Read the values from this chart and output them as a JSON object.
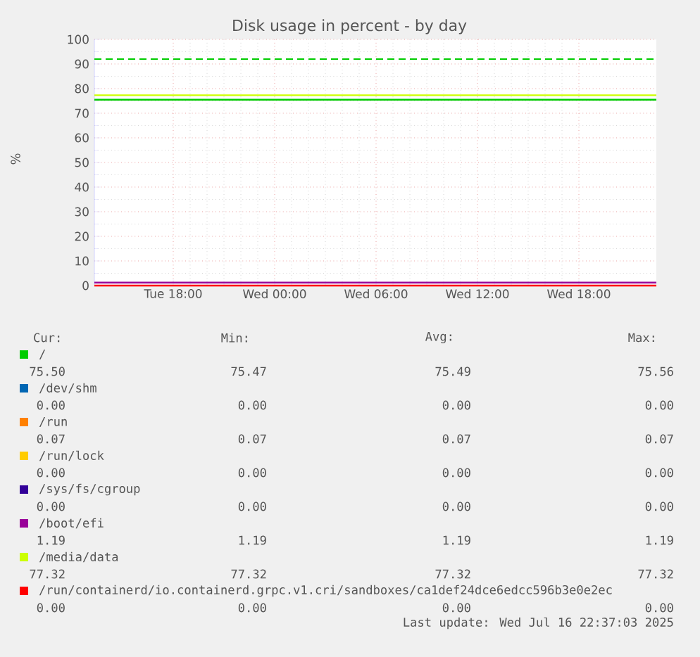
{
  "chart_data": {
    "type": "line",
    "title": "Disk usage in percent - by day",
    "ylabel": "%",
    "xlim": [
      "2025-07-15T13:20",
      "2025-07-16T22:35"
    ],
    "ylim": [
      0,
      100
    ],
    "xticks": [
      {
        "value": "2025-07-15T18:00",
        "label": "Tue 18:00"
      },
      {
        "value": "2025-07-16T00:00",
        "label": "Wed 00:00"
      },
      {
        "value": "2025-07-16T06:00",
        "label": "Wed 06:00"
      },
      {
        "value": "2025-07-16T12:00",
        "label": "Wed 12:00"
      },
      {
        "value": "2025-07-16T18:00",
        "label": "Wed 18:00"
      }
    ],
    "yticks": [
      0,
      10,
      20,
      30,
      40,
      50,
      60,
      70,
      80,
      90,
      100
    ],
    "x": [
      "2025-07-15T13:20",
      "2025-07-16T22:35"
    ],
    "series": [
      {
        "name": "/",
        "color": "#00cc00",
        "values": [
          75.5,
          75.5
        ]
      },
      {
        "name": "/dev/shm",
        "color": "#0066b3",
        "values": [
          null,
          null
        ]
      },
      {
        "name": "/run",
        "color": "#ff8000",
        "values": [
          null,
          null
        ]
      },
      {
        "name": "/run/lock",
        "color": "#ffcc00",
        "values": [
          null,
          null
        ]
      },
      {
        "name": "/sys/fs/cgroup",
        "color": "#330099",
        "values": [
          null,
          null
        ]
      },
      {
        "name": "/boot/efi",
        "color": "#990099",
        "values": [
          1.19,
          1.19
        ]
      },
      {
        "name": "/media/data",
        "color": "#ccff00",
        "values": [
          77.32,
          77.32
        ]
      },
      {
        "name": "/run/containerd/io.containerd.grpc.v1.cri/sandboxes/ca1def24dce6edcc596b3e0e2ec",
        "color": "#ff0000",
        "values": [
          0,
          0
        ]
      }
    ],
    "ref_lines": [
      {
        "axis": "y",
        "value": 92,
        "color": "#00cc00",
        "line_style": "dashed"
      }
    ],
    "annotations": [
      "Cur:",
      "Min:",
      "Avg:",
      "Max:",
      "75.50",
      "75.47",
      "75.49",
      "75.56",
      "0.00",
      "0.00",
      "0.00",
      "0.00",
      "0.07",
      "0.07",
      "0.07",
      "0.07",
      "0.00",
      "0.00",
      "0.00",
      "0.00",
      "0.00",
      "0.00",
      "0.00",
      "0.00",
      "1.19",
      "1.19",
      "1.19",
      "1.19",
      "77.32",
      "77.32",
      "77.32",
      "77.32",
      "0.00",
      "0.00",
      "0.00",
      "0.00",
      "Last update: Wed Jul 16 22:37:03 2025"
    ],
    "grid": true,
    "legend": "bottom",
    "marker": "none",
    "line_style": "solid"
  }
}
